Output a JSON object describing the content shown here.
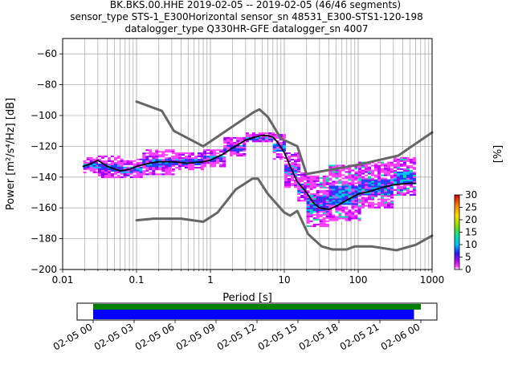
{
  "title_lines": [
    "BK.BKS.00.HHE   2019-02-05 -- 2019-02-05  (46/46 segments)",
    "sensor_type STS-1_E300Horizontal sensor_sn 48531_E300-STS1-120-198",
    "datalogger_type Q330HR-GFE datalogger_sn 4007"
  ],
  "chart_data": [
    {
      "type": "heatmap",
      "title": "BK.BKS.00.HHE   2019-02-05 -- 2019-02-05  (46/46 segments)",
      "xlabel": "Period [s]",
      "ylabel": "Power [m²/s⁴/Hz] [dB]",
      "xscale": "log",
      "xlim": [
        0.01,
        1000
      ],
      "ylim": [
        -200,
        -50
      ],
      "xticks": [
        {
          "value": 0.01,
          "label": "0.01"
        },
        {
          "value": 0.1,
          "label": "0.1"
        },
        {
          "value": 1,
          "label": "1"
        },
        {
          "value": 10,
          "label": "10"
        },
        {
          "value": 100,
          "label": "100"
        },
        {
          "value": 1000,
          "label": "1000"
        }
      ],
      "yticks": [
        {
          "value": -200,
          "label": "−200"
        },
        {
          "value": -180,
          "label": "−180"
        },
        {
          "value": -160,
          "label": "−160"
        },
        {
          "value": -140,
          "label": "−140"
        },
        {
          "value": -120,
          "label": "−120"
        },
        {
          "value": -100,
          "label": "−100"
        },
        {
          "value": -80,
          "label": "−80"
        },
        {
          "value": -60,
          "label": "−60"
        }
      ],
      "grid": true,
      "colorbar": {
        "label": "[%]",
        "range": [
          0,
          30
        ],
        "ticks": [
          {
            "value": 0,
            "label": "0"
          },
          {
            "value": 5,
            "label": "5"
          },
          {
            "value": 10,
            "label": "10"
          },
          {
            "value": 15,
            "label": "15"
          },
          {
            "value": 20,
            "label": "20"
          },
          {
            "value": 25,
            "label": "25"
          },
          {
            "value": 30,
            "label": "30"
          }
        ]
      },
      "series": [
        {
          "role": "mean",
          "color": "#000000",
          "points": [
            [
              0.019,
              -133
            ],
            [
              0.025,
              -131
            ],
            [
              0.03,
              -129
            ],
            [
              0.04,
              -133
            ],
            [
              0.06,
              -136
            ],
            [
              0.08,
              -135
            ],
            [
              0.1,
              -133
            ],
            [
              0.15,
              -131
            ],
            [
              0.2,
              -130
            ],
            [
              0.3,
              -130
            ],
            [
              0.5,
              -131
            ],
            [
              0.8,
              -130
            ],
            [
              1,
              -129
            ],
            [
              1.5,
              -125
            ],
            [
              2,
              -121
            ],
            [
              3,
              -116
            ],
            [
              4,
              -114
            ],
            [
              5,
              -113
            ],
            [
              6,
              -113
            ],
            [
              7,
              -114
            ],
            [
              8,
              -117
            ],
            [
              10,
              -124
            ],
            [
              12,
              -133
            ],
            [
              15,
              -143
            ],
            [
              20,
              -150
            ],
            [
              25,
              -157
            ],
            [
              30,
              -160
            ],
            [
              40,
              -161
            ],
            [
              50,
              -159
            ],
            [
              70,
              -155
            ],
            [
              100,
              -151
            ],
            [
              150,
              -149
            ],
            [
              200,
              -147
            ],
            [
              300,
              -145
            ],
            [
              500,
              -144
            ],
            [
              600,
              -144
            ]
          ]
        },
        {
          "role": "noise-model-high",
          "color": "#666666",
          "points": [
            [
              0.1,
              -91
            ],
            [
              0.22,
              -97
            ],
            [
              0.32,
              -110
            ],
            [
              0.8,
              -120
            ],
            [
              3.8,
              -98
            ],
            [
              4.6,
              -96
            ],
            [
              6,
              -101
            ],
            [
              9,
              -115
            ],
            [
              15,
              -120
            ],
            [
              20,
              -138
            ],
            [
              100,
              -132
            ],
            [
              350,
              -126
            ],
            [
              1000,
              -111
            ]
          ]
        },
        {
          "role": "noise-model-low",
          "color": "#666666",
          "points": [
            [
              0.1,
              -168
            ],
            [
              0.17,
              -167
            ],
            [
              0.4,
              -167
            ],
            [
              0.8,
              -169
            ],
            [
              1.25,
              -163
            ],
            [
              2.2,
              -148
            ],
            [
              3.7,
              -141
            ],
            [
              4.4,
              -141
            ],
            [
              6,
              -151
            ],
            [
              10,
              -163
            ],
            [
              12,
              -165
            ],
            [
              15,
              -162
            ],
            [
              21,
              -177
            ],
            [
              32,
              -185
            ],
            [
              45,
              -187
            ],
            [
              70,
              -187
            ],
            [
              90,
              -185
            ],
            [
              150,
              -185
            ],
            [
              330,
              -187.5
            ],
            [
              600,
              -184
            ],
            [
              1000,
              -178
            ]
          ]
        }
      ],
      "density": [
        {
          "x": [
            0.019,
            0.03
          ],
          "y": [
            -137,
            -127
          ]
        },
        {
          "x": [
            0.03,
            0.06
          ],
          "y": [
            -140,
            -126
          ]
        },
        {
          "x": [
            0.06,
            0.12
          ],
          "y": [
            -140,
            -128
          ]
        },
        {
          "x": [
            0.12,
            0.3
          ],
          "y": [
            -138,
            -122
          ]
        },
        {
          "x": [
            0.3,
            0.8
          ],
          "y": [
            -135,
            -124
          ]
        },
        {
          "x": [
            0.8,
            1.5
          ],
          "y": [
            -133,
            -122
          ]
        },
        {
          "x": [
            1.5,
            3
          ],
          "y": [
            -126,
            -114
          ]
        },
        {
          "x": [
            3,
            7
          ],
          "y": [
            -117,
            -111
          ]
        },
        {
          "x": [
            7,
            10
          ],
          "y": [
            -128,
            -112
          ]
        },
        {
          "x": [
            10,
            15
          ],
          "y": [
            -146,
            -124
          ]
        },
        {
          "x": [
            15,
            20
          ],
          "y": [
            -155,
            -137
          ]
        },
        {
          "x": [
            20,
            40
          ],
          "y": [
            -172,
            -139
          ]
        },
        {
          "x": [
            40,
            100
          ],
          "y": [
            -168,
            -132
          ]
        },
        {
          "x": [
            100,
            300
          ],
          "y": [
            -160,
            -130
          ]
        },
        {
          "x": [
            300,
            600
          ],
          "y": [
            -152,
            -127
          ]
        }
      ]
    },
    {
      "type": "bar",
      "role": "data-coverage",
      "xlim": [
        "02-05 00",
        "02-06 00"
      ],
      "xticks": [
        "02-05 00",
        "02-05 03",
        "02-05 06",
        "02-05 09",
        "02-05 12",
        "02-05 15",
        "02-05 18",
        "02-05 21",
        "02-06 00"
      ],
      "series": [
        {
          "role": "data",
          "color": "#008000",
          "span": [
            0,
            24
          ]
        },
        {
          "role": "psd-segments",
          "color": "#0000ff",
          "span": [
            0,
            23.5
          ]
        }
      ]
    }
  ]
}
